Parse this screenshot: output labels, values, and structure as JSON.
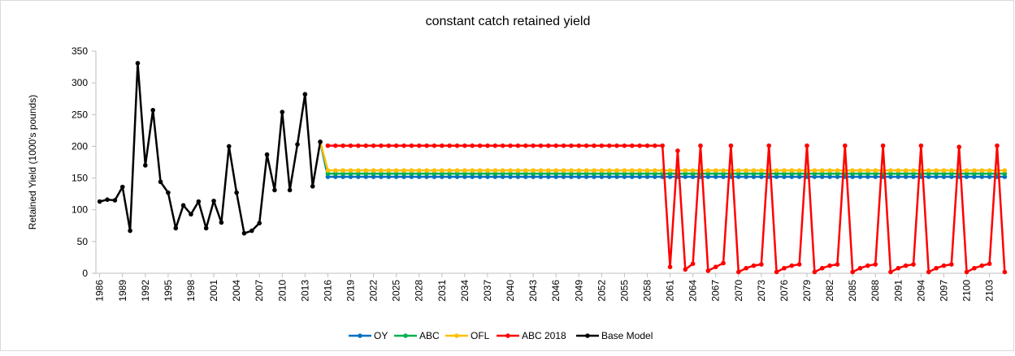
{
  "chart_data": {
    "type": "line",
    "title": "constant catch retained yield",
    "ylabel": "Retained Yield (1000's pounds)",
    "categories": [
      "1986",
      null,
      null,
      "1989",
      null,
      null,
      "1992",
      null,
      null,
      "1995",
      null,
      null,
      "1998",
      null,
      null,
      "2001",
      null,
      null,
      "2004",
      null,
      null,
      "2007",
      null,
      null,
      "2010",
      null,
      null,
      "2013",
      null,
      null,
      "2016",
      null,
      null,
      "2019",
      null,
      null,
      "2022",
      null,
      null,
      "2025",
      null,
      null,
      "2028",
      null,
      null,
      "2031",
      null,
      null,
      "2034",
      null,
      null,
      "2037",
      null,
      null,
      "2040",
      null,
      null,
      "2043",
      null,
      null,
      "2046",
      null,
      null,
      "2049",
      null,
      null,
      "2052",
      null,
      null,
      "2055",
      null,
      null,
      "2058",
      null,
      null,
      "2061",
      null,
      null,
      "2064",
      null,
      null,
      "2067",
      null,
      null,
      "2070",
      null,
      null,
      "2073",
      null,
      null,
      "2076",
      null,
      null,
      "2079",
      null,
      null,
      "2082",
      null,
      null,
      "2085",
      null,
      null,
      "2088",
      null,
      null,
      "2091",
      null,
      null,
      "2094",
      null,
      null,
      "2097",
      null,
      null,
      "2100",
      null,
      null,
      "2103",
      null,
      null
    ],
    "ylim": [
      0,
      350
    ],
    "yticks": [
      0,
      50,
      100,
      150,
      200,
      250,
      300,
      350
    ],
    "grid": false,
    "legend": "bottom",
    "series": [
      {
        "name": "OY",
        "color": "#0070c0",
        "values": [
          null,
          null,
          null,
          null,
          null,
          null,
          null,
          null,
          null,
          null,
          null,
          null,
          null,
          null,
          null,
          null,
          null,
          null,
          null,
          null,
          null,
          null,
          null,
          null,
          null,
          null,
          null,
          null,
          null,
          207,
          152,
          152,
          152,
          152,
          152,
          152,
          152,
          152,
          152,
          152,
          152,
          152,
          152,
          152,
          152,
          152,
          152,
          152,
          152,
          152,
          152,
          152,
          152,
          152,
          152,
          152,
          152,
          152,
          152,
          152,
          152,
          152,
          152,
          152,
          152,
          152,
          152,
          152,
          152,
          152,
          152,
          152,
          152,
          152,
          152,
          152,
          152,
          152,
          152,
          152,
          152,
          152,
          152,
          152,
          152,
          152,
          152,
          152,
          152,
          152,
          152,
          152,
          152,
          152,
          152,
          152,
          152,
          152,
          152,
          152,
          152,
          152,
          152,
          152,
          152,
          152,
          152,
          152,
          152,
          152,
          152,
          152,
          152,
          152,
          152,
          152,
          152,
          152,
          152,
          152
        ]
      },
      {
        "name": "ABC",
        "color": "#00b050",
        "values": [
          null,
          null,
          null,
          null,
          null,
          null,
          null,
          null,
          null,
          null,
          null,
          null,
          null,
          null,
          null,
          null,
          null,
          null,
          null,
          null,
          null,
          null,
          null,
          null,
          null,
          null,
          null,
          null,
          null,
          207,
          157,
          157,
          157,
          157,
          157,
          157,
          157,
          157,
          157,
          157,
          157,
          157,
          157,
          157,
          157,
          157,
          157,
          157,
          157,
          157,
          157,
          157,
          157,
          157,
          157,
          157,
          157,
          157,
          157,
          157,
          157,
          157,
          157,
          157,
          157,
          157,
          157,
          157,
          157,
          157,
          157,
          157,
          157,
          157,
          157,
          157,
          157,
          157,
          157,
          157,
          157,
          157,
          157,
          157,
          157,
          157,
          157,
          157,
          157,
          157,
          157,
          157,
          157,
          157,
          157,
          157,
          157,
          157,
          157,
          157,
          157,
          157,
          157,
          157,
          157,
          157,
          157,
          157,
          157,
          157,
          157,
          157,
          157,
          157,
          157,
          157,
          157,
          157,
          157,
          157
        ]
      },
      {
        "name": "OFL",
        "color": "#ffc000",
        "values": [
          null,
          null,
          null,
          null,
          null,
          null,
          null,
          null,
          null,
          null,
          null,
          null,
          null,
          null,
          null,
          null,
          null,
          null,
          null,
          null,
          null,
          null,
          null,
          null,
          null,
          null,
          null,
          null,
          null,
          207,
          162,
          162,
          162,
          162,
          162,
          162,
          162,
          162,
          162,
          162,
          162,
          162,
          162,
          162,
          162,
          162,
          162,
          162,
          162,
          162,
          162,
          162,
          162,
          162,
          162,
          162,
          162,
          162,
          162,
          162,
          162,
          162,
          162,
          162,
          162,
          162,
          162,
          162,
          162,
          162,
          162,
          162,
          162,
          162,
          162,
          162,
          162,
          162,
          162,
          162,
          162,
          162,
          162,
          162,
          162,
          162,
          162,
          162,
          162,
          162,
          162,
          162,
          162,
          162,
          162,
          162,
          162,
          162,
          162,
          162,
          162,
          162,
          162,
          162,
          162,
          162,
          162,
          162,
          162,
          162,
          162,
          162,
          162,
          162,
          162,
          162,
          162,
          162,
          162,
          162
        ]
      },
      {
        "name": "ABC 2018",
        "color": "#ff0000",
        "values": [
          null,
          null,
          null,
          null,
          null,
          null,
          null,
          null,
          null,
          null,
          null,
          null,
          null,
          null,
          null,
          null,
          null,
          null,
          null,
          null,
          null,
          null,
          null,
          null,
          null,
          null,
          null,
          null,
          null,
          null,
          201,
          201,
          201,
          201,
          201,
          201,
          201,
          201,
          201,
          201,
          201,
          201,
          201,
          201,
          201,
          201,
          201,
          201,
          201,
          201,
          201,
          201,
          201,
          201,
          201,
          201,
          201,
          201,
          201,
          201,
          201,
          201,
          201,
          201,
          201,
          201,
          201,
          201,
          201,
          201,
          201,
          201,
          201,
          201,
          201,
          10,
          193,
          6,
          15,
          201,
          4,
          10,
          16,
          201,
          2,
          8,
          12,
          14,
          201,
          2,
          8,
          12,
          14,
          201,
          2,
          8,
          12,
          14,
          201,
          2,
          8,
          12,
          14,
          201,
          2,
          8,
          12,
          14,
          201,
          2,
          8,
          12,
          14,
          199,
          2,
          8,
          12,
          15,
          201,
          2
        ]
      },
      {
        "name": "Base Model",
        "color": "#000000",
        "values": [
          113,
          116,
          115,
          136,
          67,
          331,
          170,
          257,
          144,
          127,
          71,
          107,
          93,
          113,
          71,
          114,
          80,
          200,
          127,
          63,
          67,
          79,
          187,
          131,
          254,
          131,
          203,
          282,
          137,
          207,
          null,
          null,
          null,
          null,
          null,
          null,
          null,
          null,
          null,
          null,
          null,
          null,
          null,
          null,
          null,
          null,
          null,
          null,
          null,
          null,
          null,
          null,
          null,
          null,
          null,
          null,
          null,
          null,
          null,
          null,
          null,
          null,
          null,
          null,
          null,
          null,
          null,
          null,
          null,
          null,
          null,
          null,
          null,
          null,
          null,
          null,
          null,
          null,
          null,
          null,
          null,
          null,
          null,
          null,
          null,
          null,
          null,
          null,
          null,
          null,
          null,
          null,
          null,
          null,
          null,
          null,
          null,
          null,
          null,
          null,
          null,
          null,
          null,
          null,
          null,
          null,
          null,
          null,
          null,
          null,
          null,
          null,
          null,
          null,
          null,
          null,
          null,
          null,
          null,
          null
        ]
      }
    ]
  }
}
